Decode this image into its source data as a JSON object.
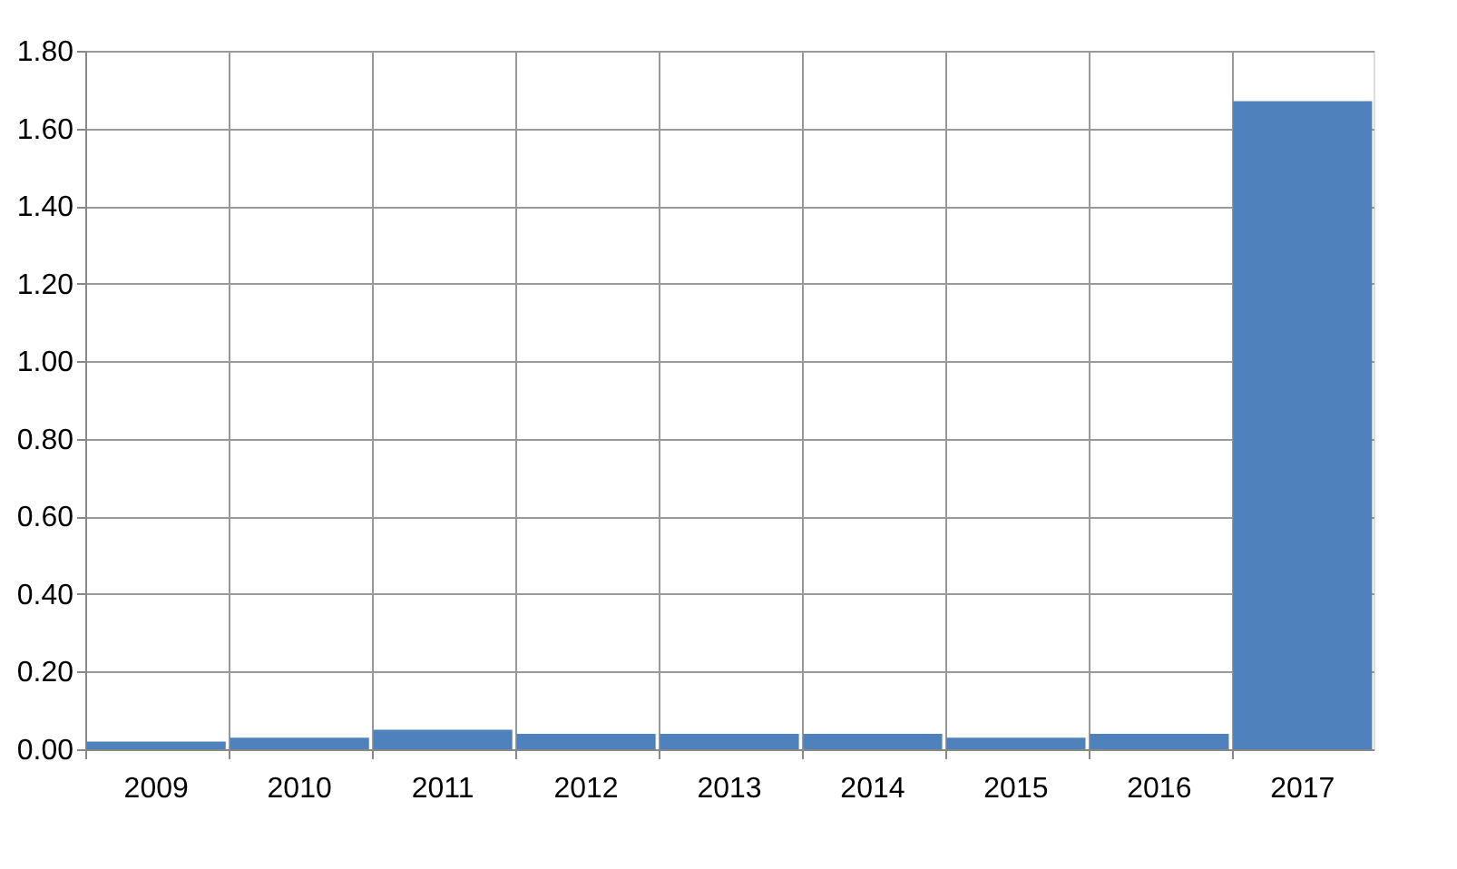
{
  "chart_data": {
    "type": "bar",
    "categories": [
      "2009",
      "2010",
      "2011",
      "2012",
      "2013",
      "2014",
      "2015",
      "2016",
      "2017"
    ],
    "series": [
      {
        "color": "#4f81bd",
        "values": [
          0.02,
          0.03,
          0.05,
          0.04,
          0.04,
          0.04,
          0.03,
          0.04,
          1.67
        ]
      }
    ],
    "ylim": [
      0,
      1.8
    ],
    "yticks": [
      {
        "value": 0,
        "label": "0.00"
      },
      {
        "value": 0.2,
        "label": "0.20"
      },
      {
        "value": 0.4,
        "label": "0.40"
      },
      {
        "value": 0.6,
        "label": "0.60"
      },
      {
        "value": 0.8,
        "label": "0.80"
      },
      {
        "value": 1.0,
        "label": "1.00"
      },
      {
        "value": 1.2,
        "label": "1.20"
      },
      {
        "value": 1.4,
        "label": "1.40"
      },
      {
        "value": 1.6,
        "label": "1.60"
      },
      {
        "value": 1.8,
        "label": "1.80"
      }
    ],
    "grid": true,
    "legend": false
  }
}
